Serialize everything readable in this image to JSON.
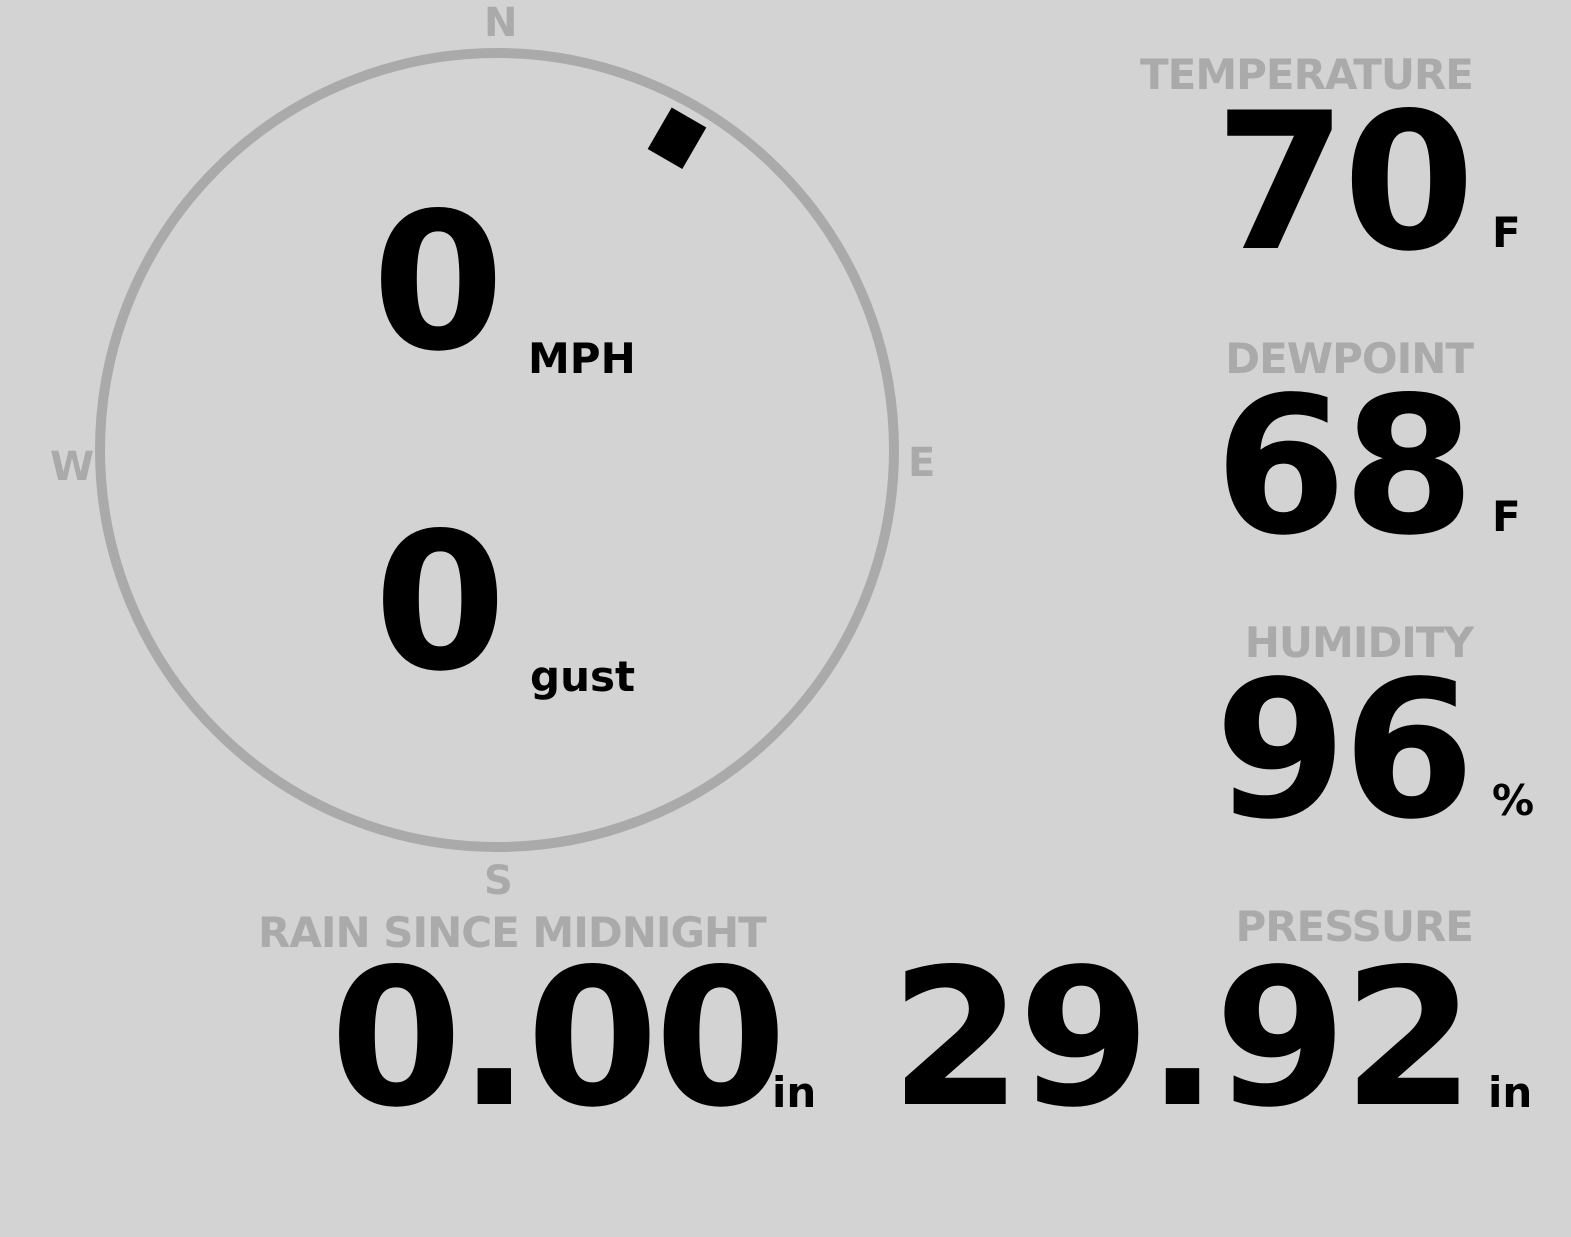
{
  "wind": {
    "speed": "0",
    "speed_unit": "MPH",
    "gust": "0",
    "gust_unit": "gust",
    "direction_deg": 30,
    "compass": {
      "n": "N",
      "e": "E",
      "s": "S",
      "w": "W"
    }
  },
  "temperature": {
    "label": "TEMPERATURE",
    "value": "70",
    "unit": "F"
  },
  "dewpoint": {
    "label": "DEWPOINT",
    "value": "68",
    "unit": "F"
  },
  "humidity": {
    "label": "HUMIDITY",
    "value": "96",
    "unit": "%"
  },
  "rain": {
    "label": "RAIN SINCE MIDNIGHT",
    "value": "0.00",
    "unit": "in"
  },
  "pressure": {
    "label": "PRESSURE",
    "value": "29.92",
    "unit": "in"
  },
  "colors": {
    "background": "#d3d3d3",
    "label": "#aaaaaa",
    "value": "#000000"
  }
}
